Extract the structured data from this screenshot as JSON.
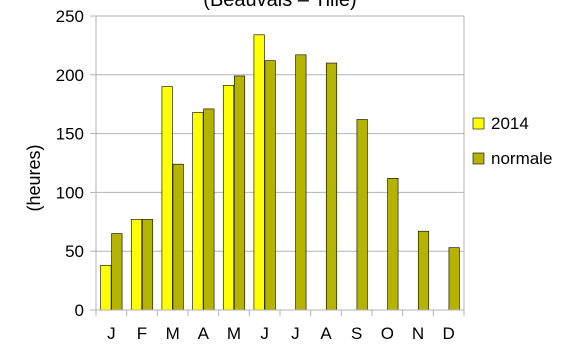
{
  "chart_data": {
    "type": "bar",
    "title": "(Beauvais – Tillé)",
    "xlabel": "",
    "ylabel": "(heures)",
    "categories": [
      "J",
      "F",
      "M",
      "A",
      "M",
      "J",
      "J",
      "A",
      "S",
      "O",
      "N",
      "D"
    ],
    "series": [
      {
        "name": "2014",
        "color": "#ffff00",
        "values": [
          38,
          77,
          190,
          168,
          191,
          234,
          null,
          null,
          null,
          null,
          null,
          null
        ]
      },
      {
        "name": "normale",
        "color": "#b3b300",
        "values": [
          65,
          77,
          124,
          171,
          199,
          212,
          217,
          210,
          162,
          112,
          67,
          53
        ]
      }
    ],
    "ylim": [
      0,
      250
    ],
    "yticks": [
      0,
      50,
      100,
      150,
      200,
      250
    ],
    "grid": true,
    "legend_position": "right"
  }
}
